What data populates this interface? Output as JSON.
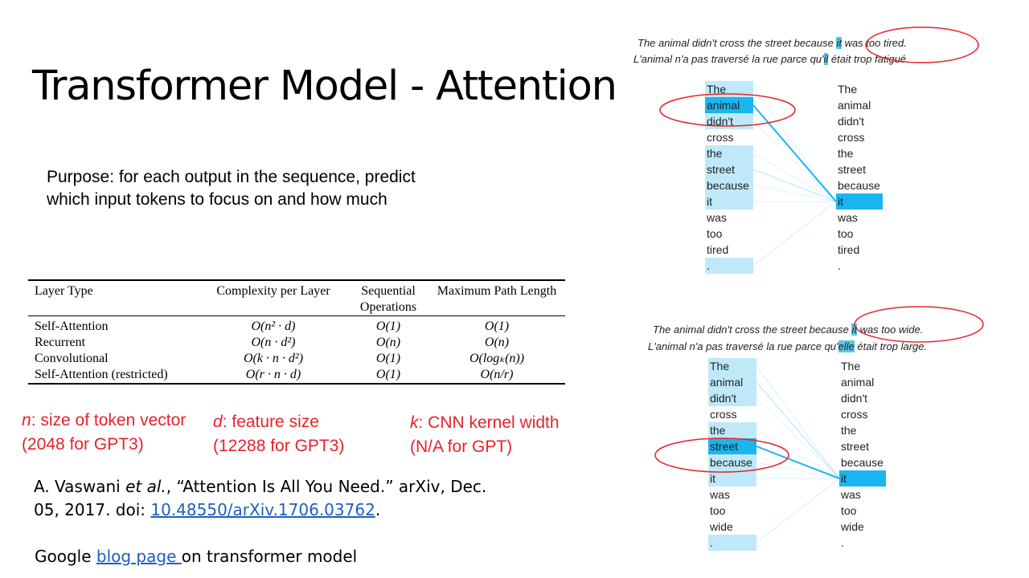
{
  "slide": {
    "title": "Transformer Model - Attention",
    "purpose_line1": "Purpose: for each output in the sequence, predict",
    "purpose_line2": "which input tokens to focus on and how much"
  },
  "table": {
    "headers": [
      "Layer Type",
      "Complexity per Layer",
      "Sequential Operations",
      "Maximum Path Length"
    ],
    "rows": [
      [
        "Self-Attention",
        "O(n² · d)",
        "O(1)",
        "O(1)"
      ],
      [
        "Recurrent",
        "O(n · d²)",
        "O(n)",
        "O(n)"
      ],
      [
        "Convolutional",
        "O(k · n · d²)",
        "O(1)",
        "O(logₖ(n))"
      ],
      [
        "Self-Attention (restricted)",
        "O(r · n · d)",
        "O(1)",
        "O(n/r)"
      ]
    ]
  },
  "notes": {
    "n_var": "n",
    "n_text": ": size of token vector",
    "n_sub": "(2048 for GPT3)",
    "d_var": "d",
    "d_text": ": feature size",
    "d_sub": "(12288 for GPT3)",
    "k_var": "k",
    "k_text": ": CNN kernel width",
    "k_sub": "(N/A for GPT)"
  },
  "reference": {
    "prefix": "A. Vaswani ",
    "etal": "et al.",
    "middle": ", “Attention Is All You Need.” arXiv, Dec. 05, 2017. doi: ",
    "doi_link": "10.48550/arXiv.1706.03762",
    "suffix": "."
  },
  "google": {
    "prefix": "Google ",
    "link": "blog page ",
    "suffix": "on transformer model"
  },
  "example_tired": {
    "en_before": "The animal didn't cross the street because ",
    "en_hl": "it",
    "en_after": " was too tired.",
    "fr_before": "L'animal n'a pas traversé la rue parce qu'",
    "fr_hl": "il",
    "fr_after": " était trop fatigué.",
    "left_words": [
      "The",
      "animal",
      "didn't",
      "cross",
      "the",
      "street",
      "because",
      "it",
      "was",
      "too",
      "tired",
      "."
    ],
    "right_words": [
      "The",
      "animal",
      "didn't",
      "cross",
      "the",
      "street",
      "because",
      "it",
      "was",
      "too",
      "tired",
      "."
    ],
    "target_index": 7,
    "weights": [
      0.15,
      1.0,
      0.05,
      0.0,
      0.05,
      0.3,
      0.05,
      0.15,
      0.0,
      0.0,
      0.0,
      0.15
    ]
  },
  "example_wide": {
    "en_before": "The animal didn't cross the street because ",
    "en_hl": "it",
    "en_after": " was too wide.",
    "fr_before": "L'animal n'a pas traversé la rue parce qu'",
    "fr_hl": "elle",
    "fr_after": " était trop large.",
    "left_words": [
      "The",
      "animal",
      "didn't",
      "cross",
      "the",
      "street",
      "because",
      "it",
      "was",
      "too",
      "wide",
      "."
    ],
    "right_words": [
      "The",
      "animal",
      "didn't",
      "cross",
      "the",
      "street",
      "because",
      "it",
      "was",
      "too",
      "wide",
      "."
    ],
    "target_index": 7,
    "weights": [
      0.15,
      0.3,
      0.05,
      0.0,
      0.05,
      1.0,
      0.05,
      0.15,
      0.0,
      0.0,
      0.0,
      0.15
    ]
  },
  "colors": {
    "highlight_strong": "#19b6ef",
    "highlight_light": "#bfe9f8",
    "annotation_red": "#e8222a",
    "link_blue": "#1f5fbf"
  }
}
